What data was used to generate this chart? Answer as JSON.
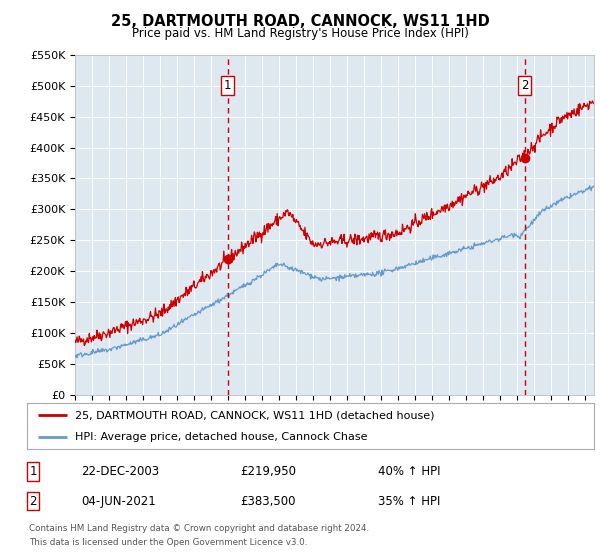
{
  "title": "25, DARTMOUTH ROAD, CANNOCK, WS11 1HD",
  "subtitle": "Price paid vs. HM Land Registry's House Price Index (HPI)",
  "ylim": [
    0,
    550000
  ],
  "yticks": [
    0,
    50000,
    100000,
    150000,
    200000,
    250000,
    300000,
    350000,
    400000,
    450000,
    500000,
    550000
  ],
  "ytick_labels": [
    "£0",
    "£50K",
    "£100K",
    "£150K",
    "£200K",
    "£250K",
    "£300K",
    "£350K",
    "£400K",
    "£450K",
    "£500K",
    "£550K"
  ],
  "xlim_start": 1995.0,
  "xlim_end": 2025.5,
  "event1_x": 2003.97,
  "event1_label": "1",
  "event1_price": "£219,950",
  "event1_date": "22-DEC-2003",
  "event1_hpi": "40% ↑ HPI",
  "event1_y": 219950,
  "event2_x": 2021.42,
  "event2_label": "2",
  "event2_price": "£383,500",
  "event2_date": "04-JUN-2021",
  "event2_hpi": "35% ↑ HPI",
  "event2_y": 383500,
  "red_line_color": "#cc0000",
  "blue_line_color": "#6699cc",
  "bg_color": "#dde8f0",
  "grid_color": "#ffffff",
  "legend_line1": "25, DARTMOUTH ROAD, CANNOCK, WS11 1HD (detached house)",
  "legend_line2": "HPI: Average price, detached house, Cannock Chase",
  "footer1": "Contains HM Land Registry data © Crown copyright and database right 2024.",
  "footer2": "This data is licensed under the Open Government Licence v3.0."
}
